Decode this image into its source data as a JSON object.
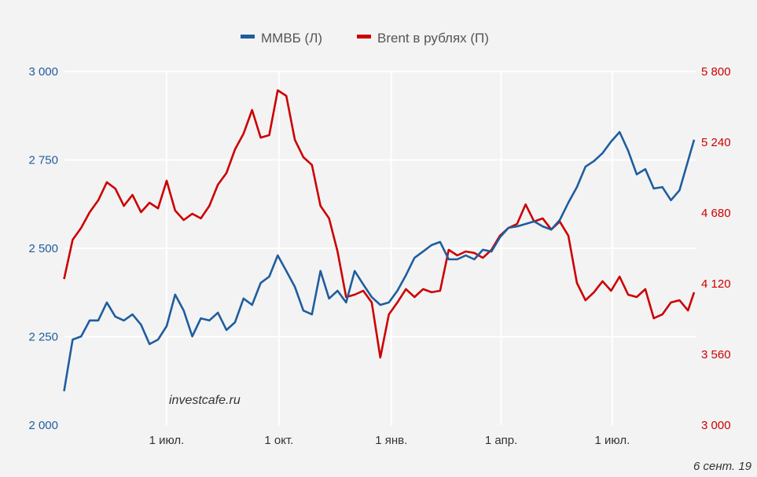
{
  "chart_data": {
    "type": "line",
    "title": "",
    "legend": {
      "placement": "top-center",
      "entries": [
        "ММВБ (Л)",
        "Brent в рублях (П)"
      ]
    },
    "watermark": "investcafe.ru",
    "date_label": "6 сент. 19",
    "grid": true,
    "x_ticks": [
      {
        "date": "2018-07-01",
        "label": "1 июл."
      },
      {
        "date": "2018-10-01",
        "label": "1 окт."
      },
      {
        "date": "2019-01-01",
        "label": "1 янв."
      },
      {
        "date": "2019-04-01",
        "label": "1 апр."
      },
      {
        "date": "2019-07-01",
        "label": "1 июл."
      }
    ],
    "x_range": [
      "2018-04-08",
      "2019-09-06"
    ],
    "y_left": {
      "range": [
        2000,
        3000
      ],
      "ticks": [
        2000,
        2250,
        2500,
        2750,
        3000
      ],
      "tick_labels": [
        "2 000",
        "2 250",
        "2 500",
        "2 750",
        "3 000"
      ]
    },
    "y_right": {
      "range": [
        3000,
        5800
      ],
      "ticks": [
        3000,
        3560,
        4120,
        4680,
        5240,
        5800
      ],
      "tick_labels": [
        "3 000",
        "3 560",
        "4 120",
        "4 680",
        "5 240",
        "5 800"
      ]
    },
    "x": [
      "2018-04-08",
      "2018-04-15",
      "2018-04-22",
      "2018-04-29",
      "2018-05-06",
      "2018-05-13",
      "2018-05-20",
      "2018-05-27",
      "2018-06-03",
      "2018-06-10",
      "2018-06-17",
      "2018-06-24",
      "2018-07-01",
      "2018-07-08",
      "2018-07-15",
      "2018-07-22",
      "2018-07-29",
      "2018-08-05",
      "2018-08-12",
      "2018-08-19",
      "2018-08-26",
      "2018-09-02",
      "2018-09-09",
      "2018-09-16",
      "2018-09-23",
      "2018-09-30",
      "2018-10-07",
      "2018-10-14",
      "2018-10-21",
      "2018-10-28",
      "2018-11-04",
      "2018-11-11",
      "2018-11-18",
      "2018-11-25",
      "2018-12-02",
      "2018-12-09",
      "2018-12-16",
      "2018-12-23",
      "2018-12-30",
      "2019-01-06",
      "2019-01-13",
      "2019-01-20",
      "2019-01-27",
      "2019-02-03",
      "2019-02-10",
      "2019-02-17",
      "2019-02-24",
      "2019-03-03",
      "2019-03-10",
      "2019-03-17",
      "2019-03-24",
      "2019-03-31",
      "2019-04-07",
      "2019-04-14",
      "2019-04-21",
      "2019-04-28",
      "2019-05-05",
      "2019-05-12",
      "2019-05-19",
      "2019-05-26",
      "2019-06-02",
      "2019-06-09",
      "2019-06-16",
      "2019-06-23",
      "2019-06-30",
      "2019-07-07",
      "2019-07-14",
      "2019-07-21",
      "2019-07-28",
      "2019-08-04",
      "2019-08-11",
      "2019-08-18",
      "2019-08-25",
      "2019-09-01",
      "2019-09-06"
    ],
    "series": [
      {
        "name": "ММВБ (Л)",
        "axis": "left",
        "color": "#1f5d9e",
        "values": [
          2096,
          2242,
          2251,
          2296,
          2296,
          2347,
          2307,
          2296,
          2313,
          2284,
          2229,
          2242,
          2280,
          2369,
          2324,
          2251,
          2302,
          2296,
          2318,
          2269,
          2291,
          2358,
          2340,
          2402,
          2420,
          2480,
          2436,
          2391,
          2324,
          2313,
          2436,
          2358,
          2380,
          2347,
          2436,
          2398,
          2362,
          2340,
          2347,
          2380,
          2424,
          2473,
          2491,
          2509,
          2518,
          2469,
          2469,
          2480,
          2469,
          2496,
          2491,
          2531,
          2558,
          2562,
          2569,
          2576,
          2562,
          2553,
          2580,
          2629,
          2673,
          2731,
          2747,
          2769,
          2802,
          2829,
          2776,
          2709,
          2724,
          2669,
          2673,
          2636,
          2664,
          2747,
          2807
        ]
      },
      {
        "name": "Brent в рублях (П)",
        "axis": "right",
        "color": "#cc0000",
        "values": [
          4157,
          4468,
          4562,
          4686,
          4780,
          4923,
          4873,
          4736,
          4823,
          4686,
          4761,
          4717,
          4935,
          4699,
          4624,
          4674,
          4637,
          4736,
          4904,
          4997,
          5184,
          5308,
          5495,
          5277,
          5296,
          5651,
          5607,
          5259,
          5122,
          5060,
          4736,
          4637,
          4375,
          4014,
          4033,
          4064,
          3971,
          3535,
          3877,
          3971,
          4077,
          4014,
          4077,
          4052,
          4064,
          4388,
          4344,
          4375,
          4363,
          4325,
          4388,
          4500,
          4562,
          4593,
          4748,
          4612,
          4637,
          4549,
          4612,
          4500,
          4126,
          3989,
          4052,
          4139,
          4064,
          4176,
          4033,
          4014,
          4077,
          3846,
          3877,
          3971,
          3989,
          3908,
          4052
        ]
      }
    ]
  }
}
